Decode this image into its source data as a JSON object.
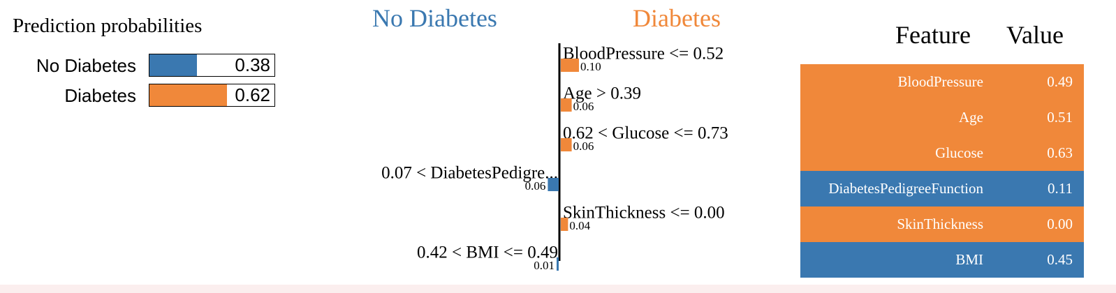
{
  "prediction_probabilities": {
    "title": "Prediction probabilities",
    "classes": [
      {
        "label": "No Diabetes",
        "value": 0.38,
        "value_text": "0.38",
        "color": "#3a78b0"
      },
      {
        "label": "Diabetes",
        "value": 0.62,
        "value_text": "0.62",
        "color": "#f0883a"
      }
    ]
  },
  "explanation": {
    "negative_label": "No Diabetes",
    "positive_label": "Diabetes",
    "negative_color": "#3a78b0",
    "positive_color": "#f0883a"
  },
  "chart_data": {
    "type": "bar",
    "orientation": "horizontal-diverging",
    "categories": [
      "BloodPressure <= 0.52",
      "Age > 0.39",
      "0.62 < Glucose <= 0.73",
      "0.07 < DiabetesPedigre...",
      "SkinThickness <= 0.00",
      "0.42 < BMI <= 0.49"
    ],
    "values": [
      0.1,
      0.06,
      0.06,
      -0.06,
      0.04,
      -0.01
    ],
    "value_labels": [
      "0.10",
      "0.06",
      "0.06",
      "0.06",
      "0.04",
      "0.01"
    ],
    "direction": [
      "Diabetes",
      "Diabetes",
      "Diabetes",
      "No Diabetes",
      "Diabetes",
      "No Diabetes"
    ]
  },
  "feature_table": {
    "headers": [
      "Feature",
      "Value"
    ],
    "rows": [
      {
        "feature": "BloodPressure",
        "value": "0.49",
        "color": "#f0883a"
      },
      {
        "feature": "Age",
        "value": "0.51",
        "color": "#f0883a"
      },
      {
        "feature": "Glucose",
        "value": "0.63",
        "color": "#f0883a"
      },
      {
        "feature": "DiabetesPedigreeFunction",
        "value": "0.11",
        "color": "#3a78b0"
      },
      {
        "feature": "SkinThickness",
        "value": "0.00",
        "color": "#f0883a"
      },
      {
        "feature": "BMI",
        "value": "0.45",
        "color": "#3a78b0"
      }
    ]
  }
}
